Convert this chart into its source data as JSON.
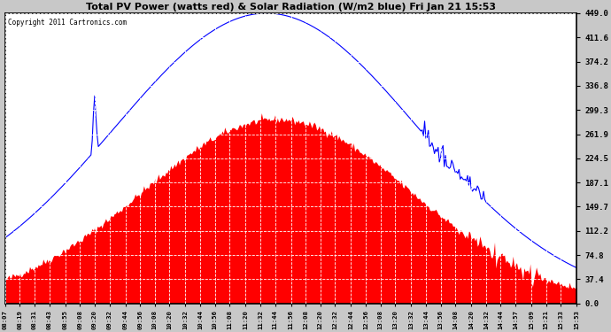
{
  "title": "Total PV Power (watts red) & Solar Radiation (W/m2 blue) Fri Jan 21 15:53",
  "copyright": "Copyright 2011 Cartronics.com",
  "yticks": [
    0.0,
    37.4,
    74.8,
    112.2,
    149.7,
    187.1,
    224.5,
    261.9,
    299.3,
    336.8,
    374.2,
    411.6,
    449.0
  ],
  "ymax": 449.0,
  "ymin": 0.0,
  "x_labels": [
    "08:07",
    "08:19",
    "08:31",
    "08:43",
    "08:55",
    "09:08",
    "09:20",
    "09:32",
    "09:44",
    "09:56",
    "10:08",
    "10:20",
    "10:32",
    "10:44",
    "10:56",
    "11:08",
    "11:20",
    "11:32",
    "11:44",
    "11:56",
    "12:08",
    "12:20",
    "12:32",
    "12:44",
    "12:56",
    "13:08",
    "13:20",
    "13:32",
    "13:44",
    "13:56",
    "14:08",
    "14:20",
    "14:32",
    "14:44",
    "14:57",
    "15:09",
    "15:21",
    "15:33",
    "15:53"
  ],
  "bg_color": "#c8c8c8",
  "plot_bg_color": "#ffffff",
  "grid_color": "#ffffff",
  "red_fill_color": "#ff0000",
  "blue_line_color": "#0000ff",
  "title_color": "#000000",
  "copyright_color": "#000000",
  "figwidth": 6.9,
  "figheight": 3.75,
  "dpi": 100
}
